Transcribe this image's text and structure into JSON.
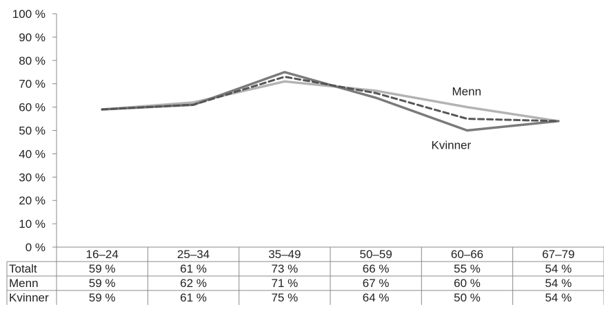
{
  "chart_data": {
    "type": "line",
    "categories": [
      "16–24",
      "25–34",
      "35–49",
      "50–59",
      "60–66",
      "67–79"
    ],
    "ylim": [
      0,
      100
    ],
    "yticks": [
      0,
      10,
      20,
      30,
      40,
      50,
      60,
      70,
      80,
      90,
      100
    ],
    "ytick_suffix": " %",
    "grid": false,
    "series": [
      {
        "name": "Totalt",
        "values": [
          59,
          61,
          73,
          66,
          55,
          54
        ],
        "display": [
          "59 %",
          "61 %",
          "73 %",
          "66 %",
          "55 %",
          "54 %"
        ],
        "color": "#555555",
        "dashed": true
      },
      {
        "name": "Menn",
        "values": [
          59,
          62,
          71,
          67,
          60,
          54
        ],
        "display": [
          "59 %",
          "62 %",
          "71 %",
          "67 %",
          "60 %",
          "54 %"
        ],
        "color": "#b3b3b3",
        "dashed": false
      },
      {
        "name": "Kvinner",
        "values": [
          59,
          61,
          75,
          64,
          50,
          54
        ],
        "display": [
          "59 %",
          "61 %",
          "75 %",
          "64 %",
          "50 %",
          "54 %"
        ],
        "color": "#7a7a7a",
        "dashed": false
      }
    ],
    "annotations": [
      {
        "text": "Menn",
        "series": "Menn"
      },
      {
        "text": "Kvinner",
        "series": "Kvinner"
      }
    ]
  }
}
